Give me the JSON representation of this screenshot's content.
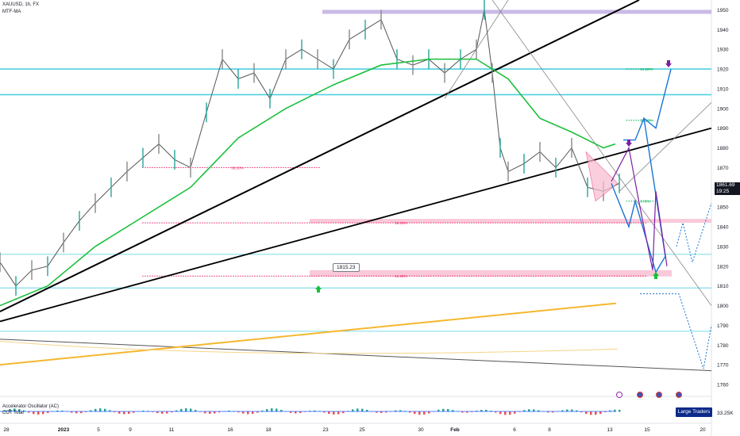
{
  "header": {
    "symbol": "XAUUSD, 1h, FX",
    "indicator": "MTF-MA"
  },
  "price": {
    "current": "1861.69",
    "countdown": "19:25"
  },
  "callout": "1815.23",
  "fib": [
    {
      "label": "38.20%",
      "value": 1870,
      "color": "#e91e63",
      "x0": 0.2,
      "x1": 0.45
    },
    {
      "label": "50.00%",
      "value": 1842,
      "color": "#e91e63",
      "x0": 0.2,
      "x1": 0.91
    },
    {
      "label": "61.80%",
      "value": 1815,
      "color": "#e91e63",
      "x0": 0.2,
      "x1": 0.91
    },
    {
      "label": "61.80%",
      "value": 1920,
      "color": "#00b050",
      "x0": 0.88,
      "x1": 0.92
    },
    {
      "label": "38.20%",
      "value": 1894,
      "color": "#00b050",
      "x0": 0.88,
      "x1": 0.92
    },
    {
      "label": "0.00%",
      "value": 1853,
      "color": "#00b050",
      "x0": 0.88,
      "x1": 0.92
    }
  ],
  "oscillator": {
    "title": "Accelerator Oscillator (AC)",
    "sub1": "COT Total",
    "sub2": "Large Traders"
  },
  "bottom_right_value": "33.25K",
  "chart_data": {
    "type": "line",
    "title": "XAUUSD, 1h, FX",
    "xlabel": "",
    "ylabel": "",
    "ylim": [
      1756,
      1955
    ],
    "y_ticks": [
      1760,
      1770,
      1780,
      1790,
      1800,
      1810,
      1820,
      1830,
      1840,
      1850,
      1860,
      1870,
      1880,
      1890,
      1900,
      1910,
      1920,
      1930,
      1940,
      1950
    ],
    "x_ticks": [
      "28",
      "2023",
      "5",
      "9",
      "11",
      "16",
      "18",
      "23",
      "25",
      "30",
      "Feb",
      "6",
      "8",
      "13",
      "15",
      "20"
    ],
    "price_series": {
      "name": "XAUUSD",
      "x": [
        0,
        20,
        40,
        60,
        80,
        100,
        120,
        140,
        160,
        180,
        200,
        220,
        240,
        260,
        280,
        300,
        320,
        340,
        360,
        380,
        400,
        420,
        440,
        460,
        480,
        500,
        520,
        540,
        560,
        580,
        600,
        610,
        620,
        630,
        640,
        660,
        680,
        700,
        720,
        740,
        760,
        780
      ],
      "values": [
        1822,
        1810,
        1818,
        1820,
        1832,
        1843,
        1852,
        1860,
        1868,
        1875,
        1882,
        1874,
        1870,
        1898,
        1925,
        1915,
        1918,
        1905,
        1925,
        1930,
        1925,
        1920,
        1935,
        1940,
        1945,
        1925,
        1922,
        1925,
        1918,
        1925,
        1930,
        1950,
        1918,
        1880,
        1868,
        1872,
        1878,
        1870,
        1880,
        1860,
        1858,
        1862
      ]
    },
    "moving_average": {
      "name": "MTF-MA",
      "x": [
        0,
        60,
        120,
        180,
        240,
        300,
        360,
        420,
        480,
        540,
        600,
        640,
        680,
        720,
        760,
        775
      ],
      "values": [
        1800,
        1810,
        1830,
        1845,
        1860,
        1885,
        1900,
        1912,
        1922,
        1925,
        1925,
        1915,
        1895,
        1888,
        1880,
        1882
      ]
    }
  }
}
